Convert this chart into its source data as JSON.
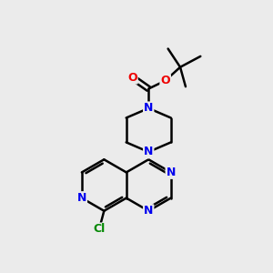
{
  "bg_color": "#ebebeb",
  "bond_color": "#000000",
  "bond_width": 1.8,
  "atom_colors": {
    "N": "#0000ee",
    "O": "#ee0000",
    "Cl": "#008800",
    "C": "#000000"
  },
  "font_size": 9.0
}
